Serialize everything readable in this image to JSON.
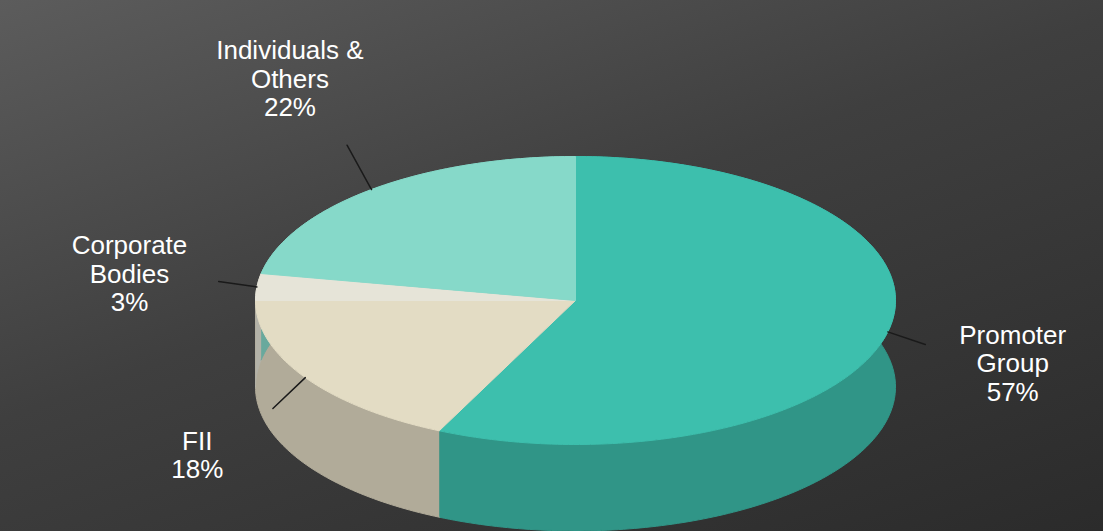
{
  "chart_data": {
    "type": "pie",
    "categories": [
      "Promoter Group",
      "FII",
      "Corporate Bodies",
      "Individuals & Others"
    ],
    "values": [
      57,
      18,
      3,
      22
    ],
    "value_labels": [
      "57%",
      "18%",
      "3%",
      "22%"
    ],
    "colors": [
      "#3dbfad",
      "#e3dcc4",
      "#e6e4d8",
      "#86d9c9"
    ],
    "data_labels": true
  }
}
